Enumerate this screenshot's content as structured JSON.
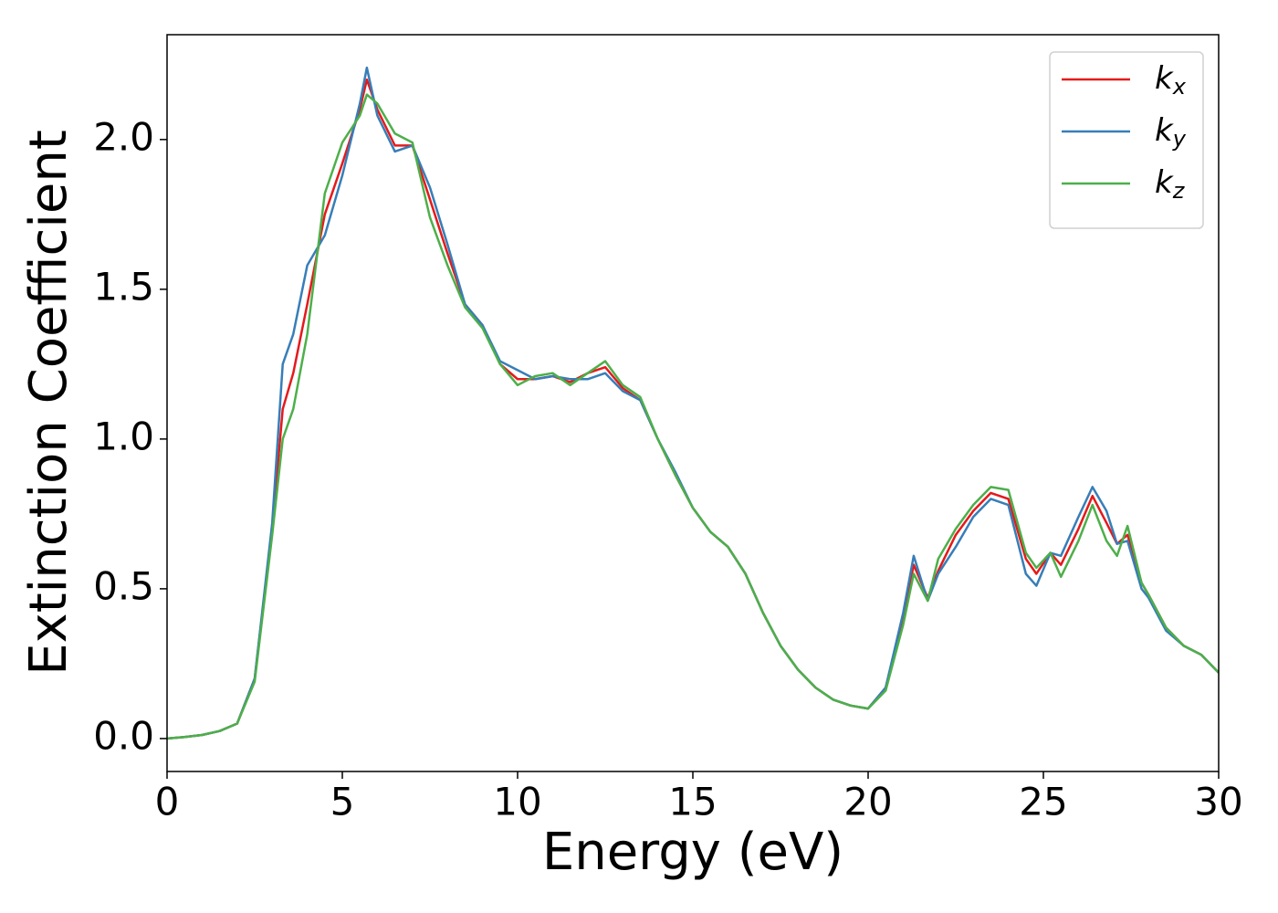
{
  "chart_data": {
    "type": "line",
    "xlabel": "Energy (eV)",
    "ylabel": "Extinction Coefficient",
    "x": [
      0,
      0.5,
      1,
      1.5,
      2,
      2.5,
      3,
      3.3,
      3.6,
      4,
      4.5,
      5,
      5.5,
      5.7,
      6,
      6.5,
      7,
      7.5,
      8,
      8.5,
      9,
      9.5,
      10,
      10.5,
      11,
      11.5,
      12,
      12.5,
      13,
      13.5,
      14,
      14.5,
      15,
      15.5,
      16,
      16.5,
      17,
      17.5,
      18,
      18.5,
      19,
      19.5,
      20,
      20.5,
      21,
      21.3,
      21.7,
      22,
      22.5,
      23,
      23.5,
      24,
      24.5,
      24.8,
      25.2,
      25.5,
      26,
      26.4,
      26.8,
      27.1,
      27.4,
      27.8,
      28,
      28.5,
      29,
      29.5,
      30
    ],
    "series": [
      {
        "name": "kx",
        "color": "#e41a1c",
        "values": [
          0,
          0.005,
          0.012,
          0.025,
          0.05,
          0.2,
          0.7,
          1.1,
          1.22,
          1.45,
          1.75,
          1.92,
          2.1,
          2.2,
          2.1,
          1.98,
          1.98,
          1.8,
          1.62,
          1.45,
          1.38,
          1.25,
          1.2,
          1.2,
          1.21,
          1.19,
          1.22,
          1.24,
          1.17,
          1.13,
          1.0,
          0.88,
          0.77,
          0.69,
          0.64,
          0.55,
          0.42,
          0.31,
          0.23,
          0.17,
          0.13,
          0.11,
          0.1,
          0.17,
          0.4,
          0.58,
          0.47,
          0.56,
          0.68,
          0.76,
          0.82,
          0.8,
          0.6,
          0.55,
          0.62,
          0.58,
          0.7,
          0.81,
          0.72,
          0.65,
          0.68,
          0.52,
          0.48,
          0.37,
          0.31,
          0.28,
          0.22
        ]
      },
      {
        "name": "ky",
        "color": "#377eb8",
        "values": [
          0,
          0.005,
          0.012,
          0.025,
          0.05,
          0.2,
          0.72,
          1.25,
          1.35,
          1.58,
          1.68,
          1.88,
          2.12,
          2.24,
          2.08,
          1.96,
          1.98,
          1.84,
          1.65,
          1.45,
          1.38,
          1.26,
          1.23,
          1.2,
          1.21,
          1.2,
          1.2,
          1.22,
          1.16,
          1.13,
          1.0,
          0.89,
          0.77,
          0.69,
          0.64,
          0.55,
          0.42,
          0.31,
          0.23,
          0.17,
          0.13,
          0.11,
          0.1,
          0.17,
          0.42,
          0.61,
          0.46,
          0.55,
          0.64,
          0.74,
          0.8,
          0.78,
          0.55,
          0.51,
          0.62,
          0.61,
          0.74,
          0.84,
          0.76,
          0.65,
          0.66,
          0.5,
          0.47,
          0.36,
          0.31,
          0.28,
          0.22
        ]
      },
      {
        "name": "kz",
        "color": "#4daf4a",
        "values": [
          0,
          0.005,
          0.012,
          0.025,
          0.05,
          0.19,
          0.68,
          1.0,
          1.1,
          1.35,
          1.82,
          1.99,
          2.08,
          2.15,
          2.12,
          2.02,
          1.99,
          1.74,
          1.58,
          1.44,
          1.37,
          1.25,
          1.18,
          1.21,
          1.22,
          1.18,
          1.22,
          1.26,
          1.18,
          1.14,
          1.0,
          0.88,
          0.77,
          0.69,
          0.64,
          0.55,
          0.42,
          0.31,
          0.23,
          0.17,
          0.13,
          0.11,
          0.1,
          0.16,
          0.38,
          0.55,
          0.46,
          0.6,
          0.7,
          0.78,
          0.84,
          0.83,
          0.62,
          0.57,
          0.62,
          0.54,
          0.66,
          0.78,
          0.66,
          0.61,
          0.71,
          0.52,
          0.48,
          0.37,
          0.31,
          0.28,
          0.22
        ]
      }
    ],
    "xlim": [
      0,
      30
    ],
    "xticks": [
      0,
      5,
      10,
      15,
      20,
      25,
      30
    ],
    "ylim": [
      -0.11,
      2.35
    ],
    "yticks": [
      {
        "value": 0,
        "label": "0.0"
      },
      0.5,
      {
        "value": 1,
        "label": "1.0"
      },
      1.5,
      {
        "value": 2,
        "label": "2.0"
      }
    ],
    "grid": false,
    "legend": "upper right"
  }
}
